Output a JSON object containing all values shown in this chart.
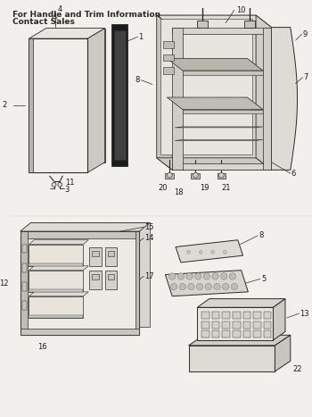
{
  "title_line1": "For Handle and Trim Information",
  "title_line2": "Contact Sales",
  "bg_color": "#f2f0ec",
  "line_color": "#2a2a2a",
  "label_color": "#1a1a1a",
  "label_fontsize": 6,
  "title_fontsize": 6.5,
  "fig_width": 3.5,
  "fig_height": 4.67,
  "dpi": 100
}
